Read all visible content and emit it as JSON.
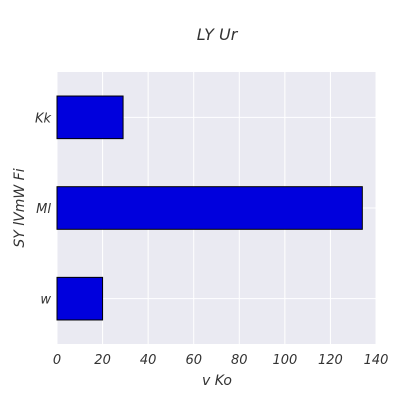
{
  "chart_data": {
    "type": "bar",
    "orientation": "horizontal",
    "title": "LY  Ur",
    "xlabel": "v  Ko",
    "ylabel": "SY lVmW Fi",
    "categories": [
      "w",
      "Ml",
      "Kk"
    ],
    "values": [
      20,
      134,
      29
    ],
    "xlim": [
      0,
      140
    ],
    "xticks": [
      0,
      20,
      40,
      60,
      80,
      100,
      120,
      140
    ],
    "grid": true,
    "legend": "none",
    "colors": {
      "bar": "#0000dd",
      "bar_edge": "#000000",
      "plot_background": "#eaeaf2",
      "grid": "#ffffff"
    }
  }
}
